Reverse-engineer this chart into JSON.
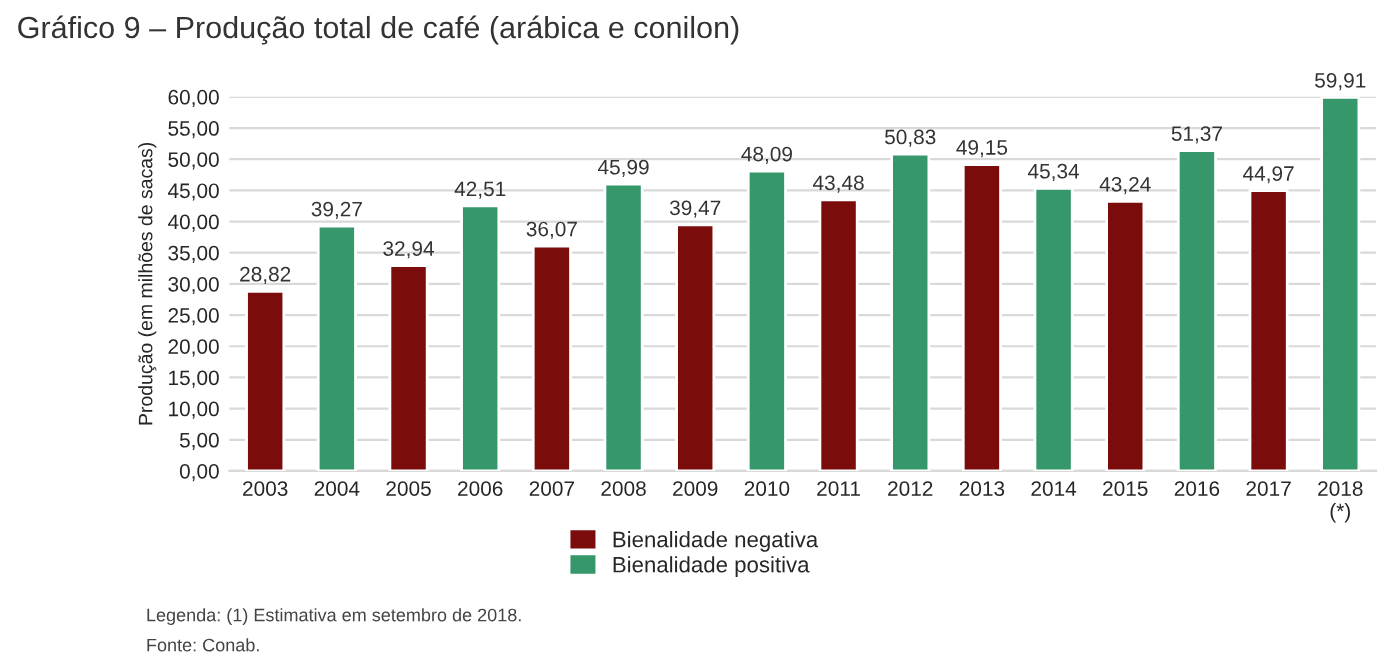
{
  "chart_data": {
    "type": "bar",
    "title": "Gráfico 9 – Produção total de café (arábica e conilon)",
    "ylabel": "Produção (em milhões de sacas)",
    "categories": [
      "2003",
      "2004",
      "2005",
      "2006",
      "2007",
      "2008",
      "2009",
      "2010",
      "2011",
      "2012",
      "2013",
      "2014",
      "2015",
      "2016",
      "2017",
      "2018\n(*)"
    ],
    "series": [
      {
        "name": "Bienalidade negativa",
        "color": "#7b0c0c",
        "values": [
          28.82,
          null,
          32.94,
          null,
          36.07,
          null,
          39.47,
          null,
          43.48,
          null,
          49.15,
          null,
          43.24,
          null,
          44.97,
          null
        ],
        "value_labels": [
          "28,82",
          null,
          "32,94",
          null,
          "36,07",
          null,
          "39,47",
          null,
          "43,48",
          null,
          "49,15",
          null,
          "43,24",
          null,
          "44,97",
          null
        ]
      },
      {
        "name": "Bienalidade positiva",
        "color": "#35976a",
        "values": [
          null,
          39.27,
          null,
          42.51,
          null,
          45.99,
          null,
          48.09,
          null,
          50.83,
          null,
          45.34,
          null,
          51.37,
          null,
          59.91
        ],
        "value_labels": [
          null,
          "39,27",
          null,
          "42,51",
          null,
          "45,99",
          null,
          "48,09",
          null,
          "50,83",
          null,
          "45,34",
          null,
          "51,37",
          null,
          "59,91"
        ]
      }
    ],
    "ylim": [
      0,
      60
    ],
    "yticks": [
      {
        "value": 0,
        "label": "0,00"
      },
      {
        "value": 5,
        "label": "5,00"
      },
      {
        "value": 10,
        "label": "10,00"
      },
      {
        "value": 15,
        "label": "15,00"
      },
      {
        "value": 20,
        "label": "20,00"
      },
      {
        "value": 25,
        "label": "25,00"
      },
      {
        "value": 30,
        "label": "30,00"
      },
      {
        "value": 35,
        "label": "35,00"
      },
      {
        "value": 40,
        "label": "40,00"
      },
      {
        "value": 45,
        "label": "45,00"
      },
      {
        "value": 50,
        "label": "50,00"
      },
      {
        "value": 55,
        "label": "55,00"
      },
      {
        "value": 60,
        "label": "60,00"
      }
    ],
    "grid": "y",
    "legend": "bottom",
    "annotations": [
      "Legenda: (1) Estimativa em setembro de 2018.",
      "Fonte: Conab."
    ]
  }
}
